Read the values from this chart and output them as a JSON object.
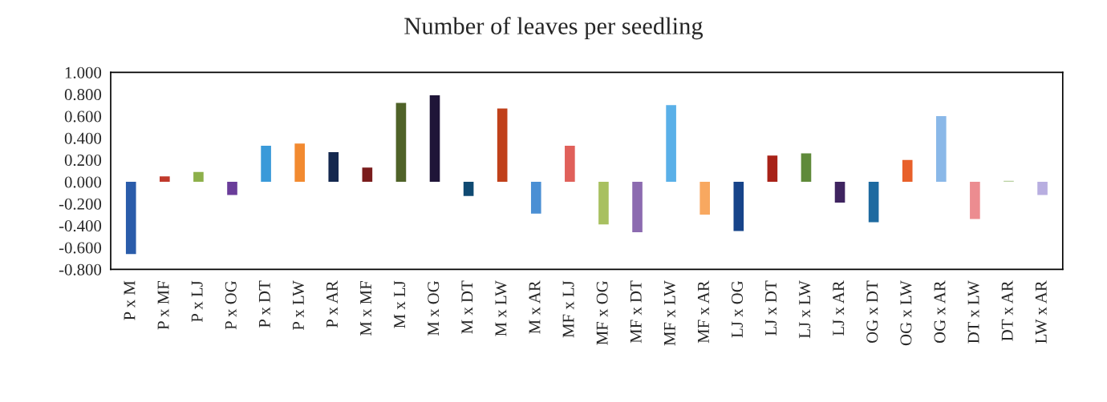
{
  "chart_data": {
    "type": "bar",
    "title": "Number of leaves per seedling",
    "categories": [
      "P x M",
      "P x MF",
      "P x LJ",
      "P x OG",
      "P x DT",
      "P x LW",
      "P x AR",
      "M x MF",
      "M x LJ",
      "M x OG",
      "M x DT",
      "M x LW",
      "M x AR",
      "MF x LJ",
      "MF x OG",
      "MF x DT",
      "MF x LW",
      "MF x AR",
      "LJ x OG",
      "LJ x DT",
      "LJ x LW",
      "LJ x AR",
      "OG x DT",
      "OG x LW",
      "OG x AR",
      "DT x LW",
      "DT x AR",
      "LW x AR"
    ],
    "values": [
      -0.66,
      0.05,
      0.09,
      -0.12,
      0.33,
      0.35,
      0.27,
      0.13,
      0.72,
      0.79,
      -0.13,
      0.67,
      -0.29,
      0.33,
      -0.39,
      -0.46,
      0.7,
      -0.3,
      -0.45,
      0.24,
      0.26,
      -0.19,
      -0.37,
      0.2,
      0.6,
      -0.34,
      0.01,
      -0.12
    ],
    "colors": [
      "#2a5caa",
      "#c0392b",
      "#8db04a",
      "#6a3d9a",
      "#3a9ad9",
      "#f28a30",
      "#14284f",
      "#7a1c1c",
      "#4f6228",
      "#1f1538",
      "#0f4a72",
      "#c0401a",
      "#4a8fd4",
      "#e0605a",
      "#a8c060",
      "#8c6bb0",
      "#5ab0e8",
      "#f8a860",
      "#17448a",
      "#a82218",
      "#5f8a3a",
      "#3f2460",
      "#1e6aa0",
      "#e8602a",
      "#8ab8e8",
      "#ec8c90",
      "#b8d0a0",
      "#b8aee0"
    ],
    "ylim": [
      -0.8,
      1.0
    ],
    "yticks": [
      {
        "value": 1.0,
        "label": "1.000"
      },
      {
        "value": 0.8,
        "label": "0.800"
      },
      {
        "value": 0.6,
        "label": "0.600"
      },
      {
        "value": 0.4,
        "label": "0.400"
      },
      {
        "value": 0.2,
        "label": "0.200"
      },
      {
        "value": 0.0,
        "label": "0.000"
      },
      {
        "value": -0.2,
        "label": "-0.200"
      },
      {
        "value": -0.4,
        "label": "-0.400"
      },
      {
        "value": -0.6,
        "label": "-0.600"
      },
      {
        "value": -0.8,
        "label": "-0.800"
      }
    ],
    "grid": false
  }
}
